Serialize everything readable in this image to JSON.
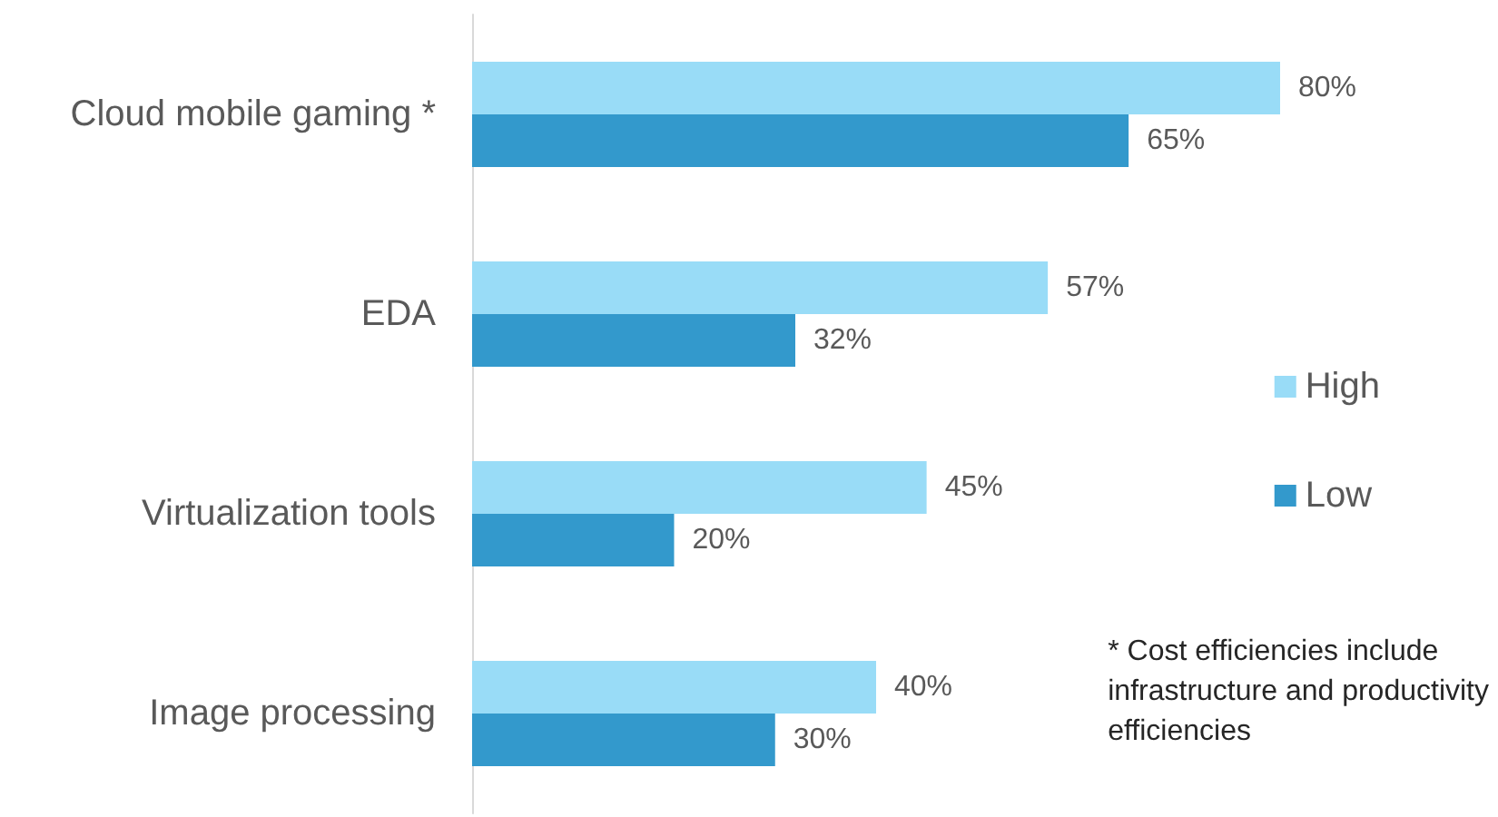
{
  "chart_data": {
    "type": "bar",
    "orientation": "horizontal",
    "categories": [
      "Cloud mobile gaming *",
      "EDA",
      "Virtualization tools",
      "Image processing"
    ],
    "series": [
      {
        "name": "High",
        "color": "#99dcf7",
        "values": [
          80,
          57,
          45,
          40
        ],
        "value_labels": [
          "80%",
          "57%",
          "45%",
          "40%"
        ]
      },
      {
        "name": "Low",
        "color": "#3399cc",
        "values": [
          65,
          32,
          20,
          30
        ],
        "value_labels": [
          "65%",
          "32%",
          "20%",
          "30%"
        ]
      }
    ],
    "legend": "right",
    "annotations": [
      "* Cost efficiencies include infrastructure and productivity efficiencies"
    ]
  }
}
